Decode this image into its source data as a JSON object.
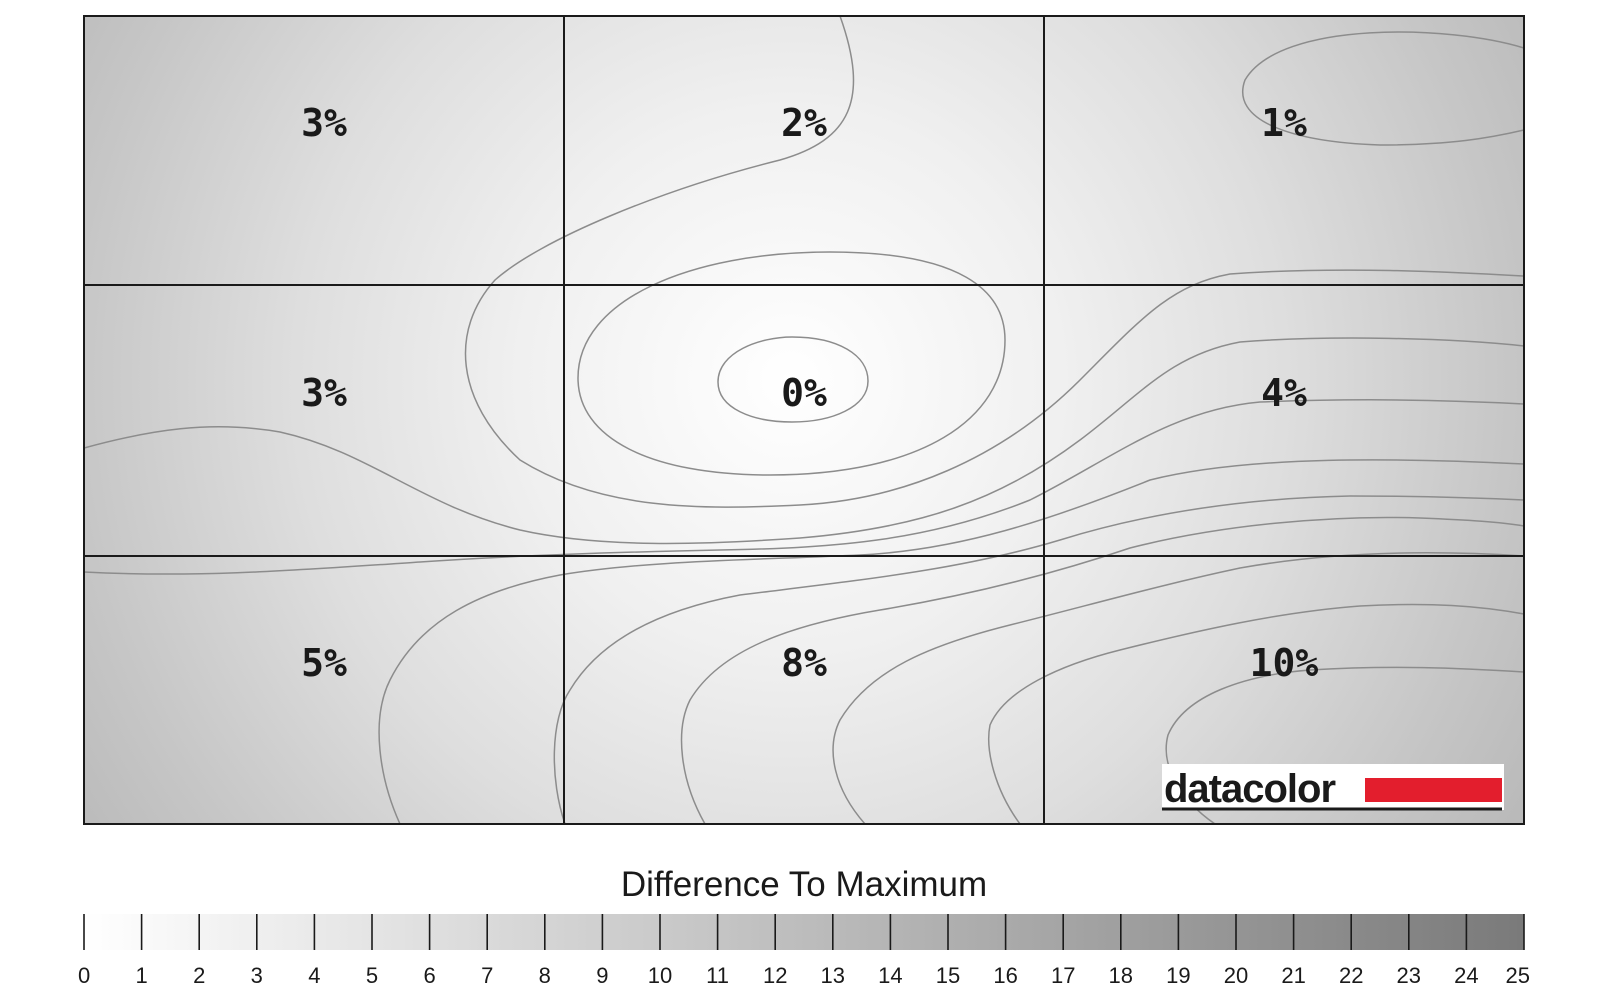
{
  "chart_data": {
    "type": "heatmap",
    "rows": 3,
    "cols": 3,
    "values": [
      [
        3,
        2,
        1
      ],
      [
        3,
        0,
        4
      ],
      [
        5,
        8,
        10
      ]
    ],
    "labels": [
      [
        "3%",
        "2%",
        "1%"
      ],
      [
        "3%",
        "0%",
        "4%"
      ],
      [
        "5%",
        "8%",
        "10%"
      ]
    ],
    "legend": {
      "title": "Difference To Maximum",
      "range": [
        0,
        25
      ],
      "ticks": [
        "0",
        "1",
        "2",
        "3",
        "4",
        "5",
        "6",
        "7",
        "8",
        "9",
        "10",
        "11",
        "12",
        "13",
        "14",
        "15",
        "16",
        "17",
        "18",
        "19",
        "20",
        "21",
        "22",
        "23",
        "24",
        "25"
      ],
      "color_low": "#ffffff",
      "color_high": "#7a7a7a"
    }
  },
  "logo": {
    "text": "datacolor",
    "bar_color": "#e31e2d"
  }
}
